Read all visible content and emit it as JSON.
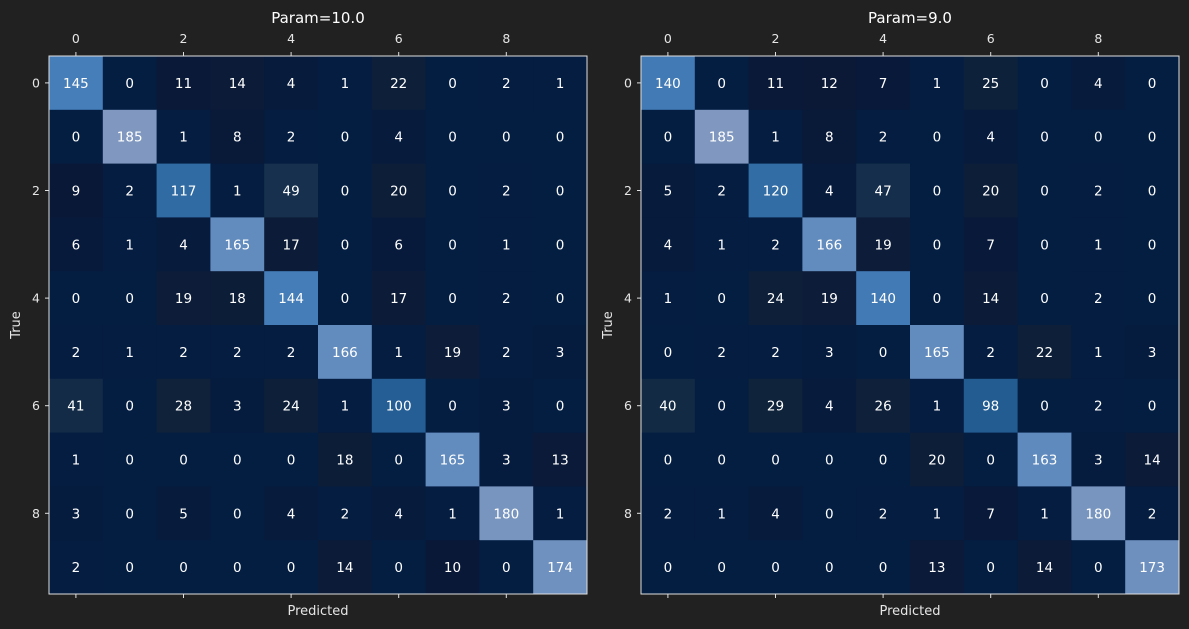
{
  "chart_data": [
    {
      "type": "heatmap",
      "title": "Param=10.0",
      "xlabel": "Predicted",
      "ylabel": "True",
      "x_ticks": [
        "0",
        "2",
        "4",
        "6",
        "8"
      ],
      "y_ticks": [
        "0",
        "2",
        "4",
        "6",
        "8"
      ],
      "vmax": 185,
      "matrix": [
        [
          145,
          0,
          11,
          14,
          4,
          1,
          22,
          0,
          2,
          1
        ],
        [
          0,
          185,
          1,
          8,
          2,
          0,
          4,
          0,
          0,
          0
        ],
        [
          9,
          2,
          117,
          1,
          49,
          0,
          20,
          0,
          2,
          0
        ],
        [
          6,
          1,
          4,
          165,
          17,
          0,
          6,
          0,
          1,
          0
        ],
        [
          0,
          0,
          19,
          18,
          144,
          0,
          17,
          0,
          2,
          0
        ],
        [
          2,
          1,
          2,
          2,
          2,
          166,
          1,
          19,
          2,
          3
        ],
        [
          41,
          0,
          28,
          3,
          24,
          1,
          100,
          0,
          3,
          0
        ],
        [
          1,
          0,
          0,
          0,
          0,
          18,
          0,
          165,
          3,
          13
        ],
        [
          3,
          0,
          5,
          0,
          4,
          2,
          4,
          1,
          180,
          1
        ],
        [
          2,
          0,
          0,
          0,
          0,
          14,
          0,
          10,
          0,
          174
        ]
      ]
    },
    {
      "type": "heatmap",
      "title": "Param=9.0",
      "xlabel": "Predicted",
      "ylabel": "True",
      "x_ticks": [
        "0",
        "2",
        "4",
        "6",
        "8"
      ],
      "y_ticks": [
        "0",
        "2",
        "4",
        "6",
        "8"
      ],
      "vmax": 185,
      "matrix": [
        [
          140,
          0,
          11,
          12,
          7,
          1,
          25,
          0,
          4,
          0
        ],
        [
          0,
          185,
          1,
          8,
          2,
          0,
          4,
          0,
          0,
          0
        ],
        [
          5,
          2,
          120,
          4,
          47,
          0,
          20,
          0,
          2,
          0
        ],
        [
          4,
          1,
          2,
          166,
          19,
          0,
          7,
          0,
          1,
          0
        ],
        [
          1,
          0,
          24,
          19,
          140,
          0,
          14,
          0,
          2,
          0
        ],
        [
          0,
          2,
          2,
          3,
          0,
          165,
          2,
          22,
          1,
          3
        ],
        [
          40,
          0,
          29,
          4,
          26,
          1,
          98,
          0,
          2,
          0
        ],
        [
          0,
          0,
          0,
          0,
          0,
          20,
          0,
          163,
          3,
          14
        ],
        [
          2,
          1,
          4,
          0,
          2,
          1,
          7,
          1,
          180,
          2
        ],
        [
          0,
          0,
          0,
          0,
          0,
          13,
          0,
          14,
          0,
          173
        ]
      ]
    }
  ]
}
